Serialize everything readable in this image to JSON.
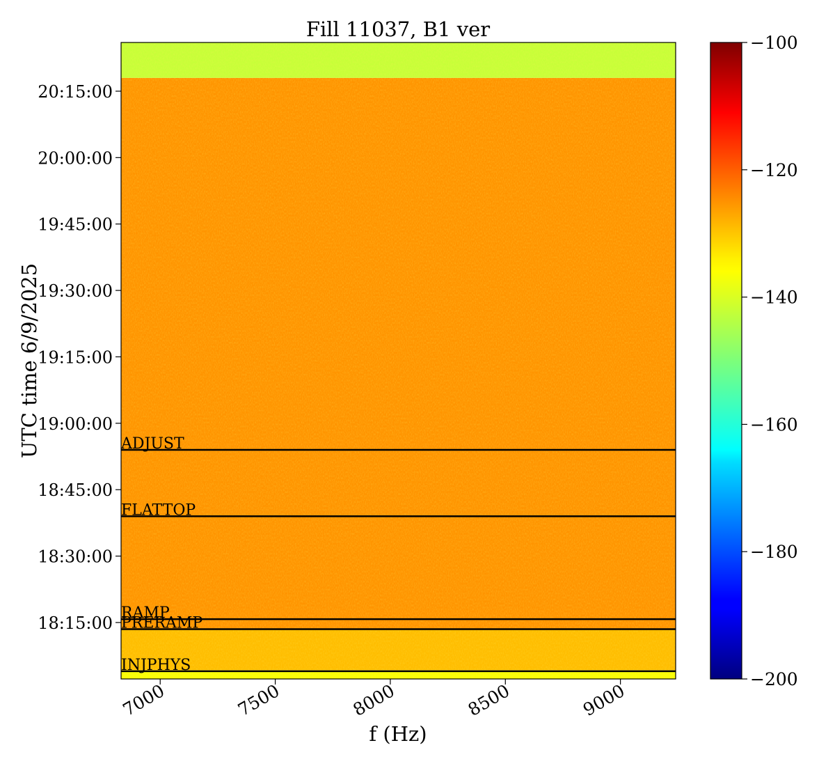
{
  "chart_data": {
    "type": "heatmap",
    "title": "Fill 11037, B1 ver",
    "xlabel": "f (Hz)",
    "ylabel": "UTC time 6/9/2025",
    "xlim": [
      6830,
      9240
    ],
    "x_ticks": [
      7000,
      7500,
      8000,
      8500,
      9000
    ],
    "y_range": [
      "18:02:15",
      "20:26:00"
    ],
    "y_ticks": [
      "18:15:00",
      "18:30:00",
      "18:45:00",
      "19:00:00",
      "19:15:00",
      "19:30:00",
      "19:45:00",
      "20:00:00",
      "20:15:00"
    ],
    "colorbar": {
      "colormap": "jet",
      "min": -200,
      "max": -100,
      "ticks": [
        -100,
        -120,
        -140,
        -160,
        -180,
        -200
      ]
    },
    "intensity_regions": [
      {
        "from": "18:02:15",
        "to": "18:04:15",
        "level": -138
      },
      {
        "from": "18:04:15",
        "to": "18:13:30",
        "level": -131
      },
      {
        "from": "18:13:30",
        "to": "20:18:00",
        "level": -127
      },
      {
        "from": "20:18:00",
        "to": "20:26:00",
        "level": -143
      }
    ],
    "markers": [
      {
        "label": "INJPHYS",
        "time": "18:04:00"
      },
      {
        "label": "PRERAMP",
        "time": "18:13:30"
      },
      {
        "label": "RAMP",
        "time": "18:15:45"
      },
      {
        "label": "ADJUST",
        "time": "18:54:00"
      },
      {
        "label": "FLATTOP",
        "time": "18:39:00"
      }
    ]
  }
}
